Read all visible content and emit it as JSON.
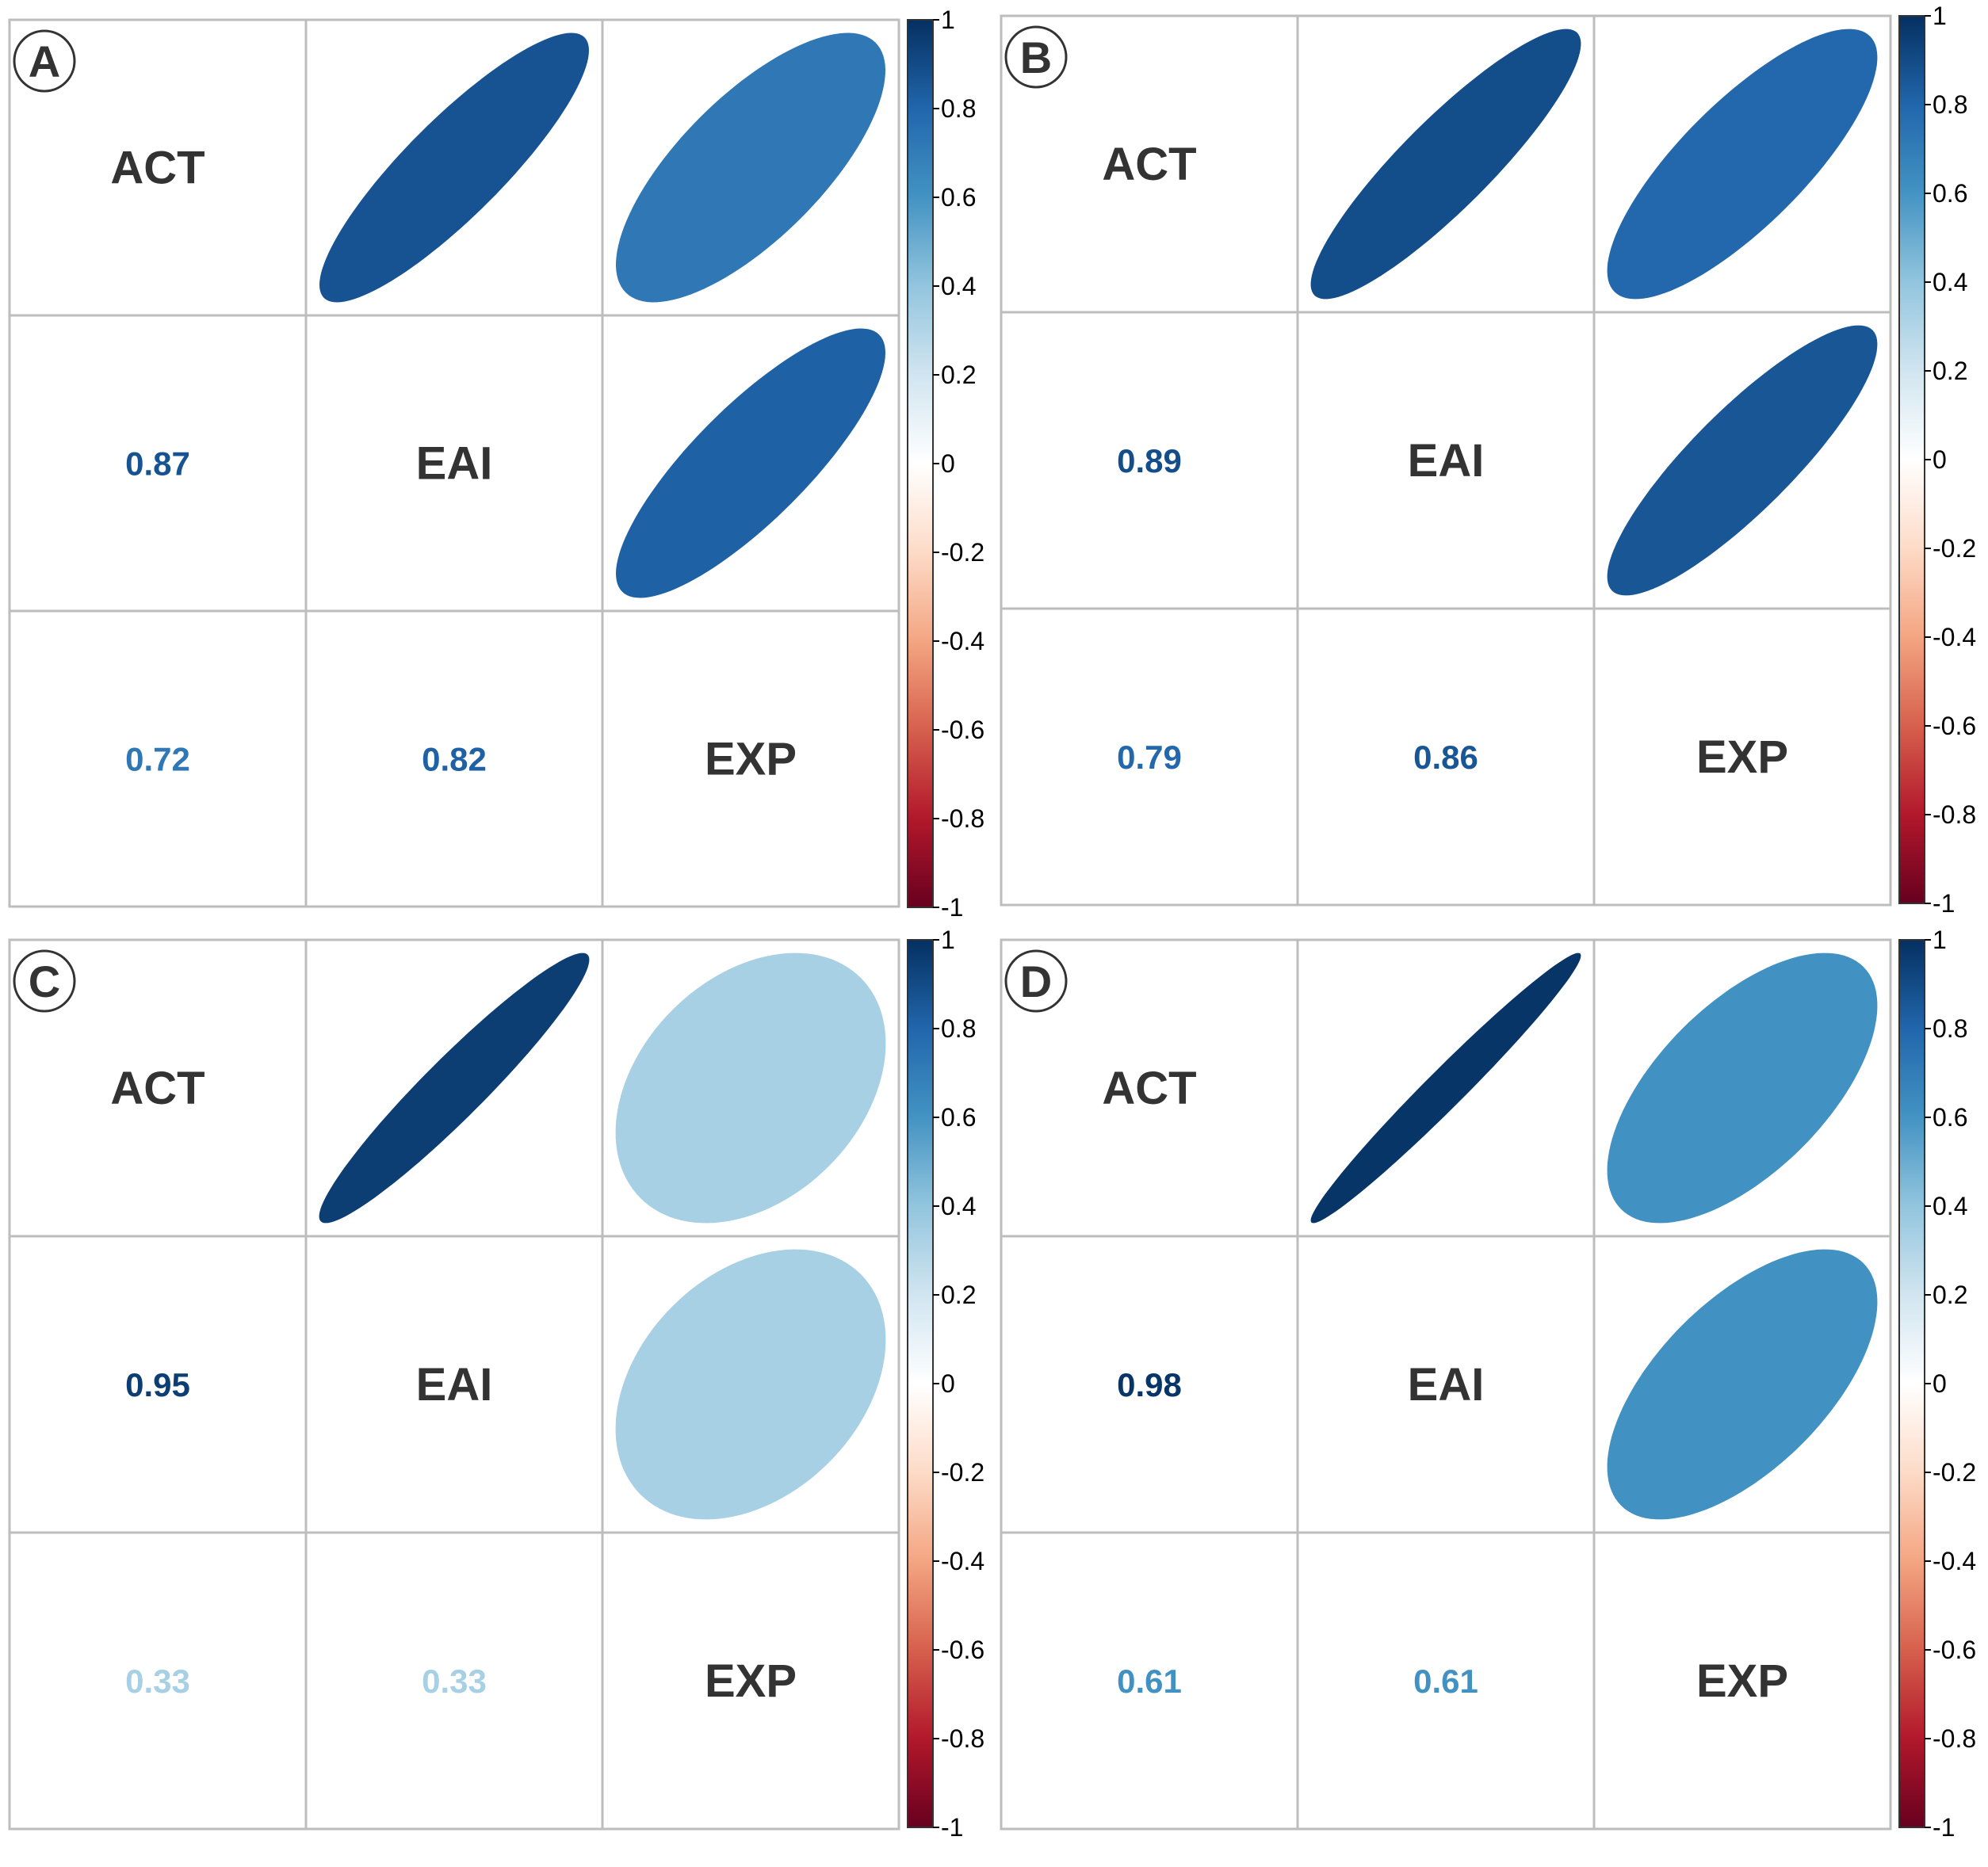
{
  "chart_data": [
    {
      "type": "correlation-matrix",
      "panel": "A",
      "variables": [
        "ACT",
        "EAI",
        "EXP"
      ],
      "pairs": [
        {
          "row": "EAI",
          "col": "ACT",
          "r": 0.87,
          "label": "0.87"
        },
        {
          "row": "EXP",
          "col": "ACT",
          "r": 0.72,
          "label": "0.72"
        },
        {
          "row": "EXP",
          "col": "EAI",
          "r": 0.82,
          "label": "0.82"
        }
      ],
      "colorbar": {
        "min": -1,
        "max": 1,
        "ticks": [
          "1",
          "0.8",
          "0.6",
          "0.4",
          "0.2",
          "0",
          "-0.2",
          "-0.4",
          "-0.6",
          "-0.8",
          "-1"
        ]
      }
    },
    {
      "type": "correlation-matrix",
      "panel": "B",
      "variables": [
        "ACT",
        "EAI",
        "EXP"
      ],
      "pairs": [
        {
          "row": "EAI",
          "col": "ACT",
          "r": 0.89,
          "label": "0.89"
        },
        {
          "row": "EXP",
          "col": "ACT",
          "r": 0.79,
          "label": "0.79"
        },
        {
          "row": "EXP",
          "col": "EAI",
          "r": 0.86,
          "label": "0.86"
        }
      ],
      "colorbar": {
        "min": -1,
        "max": 1,
        "ticks": [
          "1",
          "0.8",
          "0.6",
          "0.4",
          "0.2",
          "0",
          "-0.2",
          "-0.4",
          "-0.6",
          "-0.8",
          "-1"
        ]
      }
    },
    {
      "type": "correlation-matrix",
      "panel": "C",
      "variables": [
        "ACT",
        "EAI",
        "EXP"
      ],
      "pairs": [
        {
          "row": "EAI",
          "col": "ACT",
          "r": 0.95,
          "label": "0.95"
        },
        {
          "row": "EXP",
          "col": "ACT",
          "r": 0.33,
          "label": "0.33"
        },
        {
          "row": "EXP",
          "col": "EAI",
          "r": 0.33,
          "label": "0.33"
        }
      ],
      "colorbar": {
        "min": -1,
        "max": 1,
        "ticks": [
          "1",
          "0.8",
          "0.6",
          "0.4",
          "0.2",
          "0",
          "-0.2",
          "-0.4",
          "-0.6",
          "-0.8",
          "-1"
        ]
      }
    },
    {
      "type": "correlation-matrix",
      "panel": "D",
      "variables": [
        "ACT",
        "EAI",
        "EXP"
      ],
      "pairs": [
        {
          "row": "EAI",
          "col": "ACT",
          "r": 0.98,
          "label": "0.98"
        },
        {
          "row": "EXP",
          "col": "ACT",
          "r": 0.61,
          "label": "0.61"
        },
        {
          "row": "EXP",
          "col": "EAI",
          "r": 0.61,
          "label": "0.61"
        }
      ],
      "colorbar": {
        "min": -1,
        "max": 1,
        "ticks": [
          "1",
          "0.8",
          "0.6",
          "0.4",
          "0.2",
          "0",
          "-0.2",
          "-0.4",
          "-0.6",
          "-0.8",
          "-1"
        ]
      }
    }
  ],
  "colors": {
    "scale": [
      "#67001F",
      "#B2182B",
      "#D6604D",
      "#F4A582",
      "#FDDBC7",
      "#FFFFFF",
      "#D1E5F0",
      "#92C5DE",
      "#4393C3",
      "#2166AC",
      "#053061"
    ],
    "grid": "#BDBDBD",
    "text": "#333333"
  }
}
